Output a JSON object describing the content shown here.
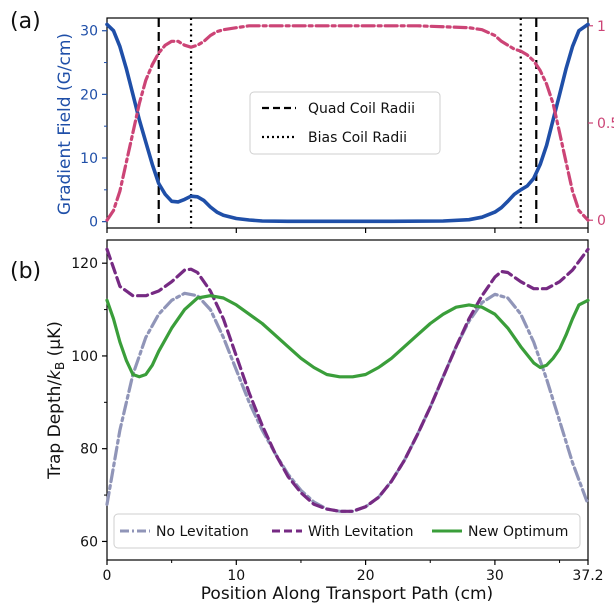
{
  "panel_labels": {
    "a": "(a)",
    "b": "(b)"
  },
  "chart_data": [
    {
      "type": "line",
      "panel": "(a)",
      "xlabel": "",
      "ylabel": "Gradient Field (G/cm)",
      "ylabel_color": "#1f4fa8",
      "xlim": [
        0,
        37.2
      ],
      "ylim": [
        -1,
        32
      ],
      "yticks": [
        "0",
        "10",
        "20",
        "30"
      ],
      "y2lim": [
        -0.04,
        1.04
      ],
      "y2ticks": [
        "0",
        "0.5",
        "1"
      ],
      "y2_color": "#cc4476",
      "grid": false,
      "legend_position": "center-right",
      "legend": [
        {
          "label": "Quad Coil Radii",
          "style": "dashed"
        },
        {
          "label": "Bias Coil Radii",
          "style": "dotted"
        }
      ],
      "vlines": [
        {
          "x": 4.0,
          "style": "dashed"
        },
        {
          "x": 6.5,
          "style": "dotted"
        },
        {
          "x": 32.0,
          "style": "dotted"
        },
        {
          "x": 33.2,
          "style": "dashed"
        }
      ],
      "series": [
        {
          "axis": "left",
          "color": "#1f4fa8",
          "style": "solid",
          "x": [
            0,
            0.5,
            1,
            1.5,
            2,
            2.5,
            3,
            3.5,
            4,
            4.5,
            5,
            5.5,
            6,
            6.5,
            7,
            7.5,
            8,
            8.5,
            9,
            10,
            11,
            12,
            14,
            18,
            22,
            26,
            28,
            29,
            30,
            30.5,
            31,
            31.5,
            32,
            32.5,
            33,
            33.5,
            34,
            34.5,
            35,
            35.5,
            36,
            36.5,
            37.2
          ],
          "values": [
            31,
            30,
            27.5,
            24,
            20,
            16,
            12.5,
            9,
            6,
            4.3,
            3.2,
            3.1,
            3.5,
            4,
            3.9,
            3.3,
            2.3,
            1.5,
            1,
            0.5,
            0.25,
            0.1,
            0.05,
            0.05,
            0.05,
            0.1,
            0.3,
            0.7,
            1.5,
            2.2,
            3.2,
            4.3,
            5,
            5.6,
            6.8,
            9,
            12,
            16,
            20,
            24,
            27.5,
            30,
            31
          ]
        },
        {
          "axis": "right",
          "color": "#cc4476",
          "style": "dashdot",
          "x": [
            0,
            0.5,
            1,
            1.5,
            2,
            2.5,
            3,
            3.5,
            4,
            4.5,
            5,
            5.5,
            6,
            6.5,
            7,
            7.5,
            8,
            8.5,
            9,
            10,
            11,
            12,
            14,
            18,
            24,
            28,
            29,
            30,
            30.5,
            31,
            31.5,
            32,
            32.5,
            33,
            33.5,
            34,
            34.5,
            35,
            35.5,
            36,
            36.5,
            37.2
          ],
          "values": [
            0,
            0.05,
            0.15,
            0.3,
            0.45,
            0.6,
            0.72,
            0.8,
            0.86,
            0.9,
            0.92,
            0.92,
            0.9,
            0.89,
            0.9,
            0.92,
            0.95,
            0.97,
            0.98,
            0.99,
            1.0,
            1.0,
            1.0,
            1.0,
            1.0,
            0.99,
            0.98,
            0.95,
            0.92,
            0.9,
            0.88,
            0.87,
            0.85,
            0.82,
            0.77,
            0.7,
            0.6,
            0.45,
            0.3,
            0.15,
            0.05,
            0
          ]
        }
      ]
    },
    {
      "type": "line",
      "panel": "(b)",
      "xlabel": "Position Along Transport Path (cm)",
      "ylabel_main": "Trap Depth/",
      "ylabel_k": "k",
      "ylabel_sub": "B",
      "ylabel_unit": " (μK)",
      "xlim": [
        0,
        37.2
      ],
      "xticks": [
        "0",
        "10",
        "20",
        "30",
        "37.2"
      ],
      "xtick_values": [
        0,
        10,
        20,
        30,
        37.2
      ],
      "ylim": [
        56,
        125
      ],
      "yticks": [
        "60",
        "80",
        "100",
        "120"
      ],
      "ytick_values": [
        60,
        80,
        100,
        120
      ],
      "grid": false,
      "legend_position": "bottom",
      "series": [
        {
          "name": "No Levitation",
          "color": "#9095b8",
          "style": "dashdot",
          "x": [
            0,
            1,
            2,
            3,
            4,
            5,
            6,
            7,
            8,
            9,
            10,
            11,
            12,
            13,
            14,
            15,
            16,
            17,
            18,
            19,
            20,
            21,
            22,
            23,
            24,
            25,
            26,
            27,
            28,
            29,
            30,
            31,
            32,
            33,
            34,
            35,
            36,
            37.2
          ],
          "values": [
            68,
            84,
            96,
            104,
            109,
            112,
            113.5,
            113,
            110,
            104,
            97,
            90,
            84,
            79,
            74.5,
            71,
            68.5,
            67,
            66.5,
            66.5,
            67.5,
            69.5,
            73,
            77.5,
            83,
            89,
            95.5,
            102,
            107.5,
            111.5,
            113.3,
            112.5,
            109,
            103,
            95,
            86,
            77,
            68
          ]
        },
        {
          "name": "With Levitation",
          "color": "#762a83",
          "style": "dashed",
          "x": [
            0,
            0.5,
            1,
            2,
            3,
            4,
            5,
            6,
            6.5,
            7,
            8,
            9,
            10,
            11,
            12,
            13,
            14,
            15,
            16,
            17,
            18,
            19,
            20,
            21,
            22,
            23,
            24,
            25,
            26,
            27,
            28,
            29,
            30,
            30.5,
            31,
            32,
            33,
            34,
            35,
            36,
            37.2
          ],
          "values": [
            123,
            119,
            115,
            113,
            113,
            114,
            116,
            118.5,
            118.7,
            118,
            114,
            108,
            100,
            92,
            85,
            79,
            74,
            70.5,
            68,
            67,
            66.5,
            66.5,
            67.5,
            69.5,
            73,
            77.5,
            83,
            89,
            95.5,
            102,
            108,
            113,
            117,
            118.2,
            118,
            116,
            114.5,
            114.5,
            116,
            118.5,
            123
          ]
        },
        {
          "name": "New Optimum",
          "color": "#3a9e3a",
          "style": "solid",
          "x": [
            0,
            0.5,
            1,
            1.5,
            2,
            2.5,
            3,
            3.5,
            4,
            5,
            6,
            7,
            8,
            9,
            10,
            11,
            12,
            13,
            14,
            15,
            16,
            17,
            18,
            19,
            20,
            21,
            22,
            23,
            24,
            25,
            26,
            27,
            28,
            29,
            30,
            31,
            32,
            33,
            33.5,
            34,
            34.5,
            35,
            35.5,
            36,
            36.5,
            37.2
          ],
          "values": [
            112,
            108,
            103,
            99,
            96,
            95.5,
            96,
            98,
            101,
            106,
            110,
            112.5,
            113,
            112.5,
            111,
            109,
            107,
            104.5,
            102,
            99.5,
            97.5,
            96,
            95.5,
            95.5,
            96,
            97.5,
            99.5,
            102,
            104.5,
            107,
            109,
            110.5,
            111,
            110.5,
            109,
            106,
            102,
            98.5,
            97.5,
            98,
            99.5,
            101.5,
            104.5,
            108,
            111,
            112
          ]
        }
      ]
    }
  ]
}
